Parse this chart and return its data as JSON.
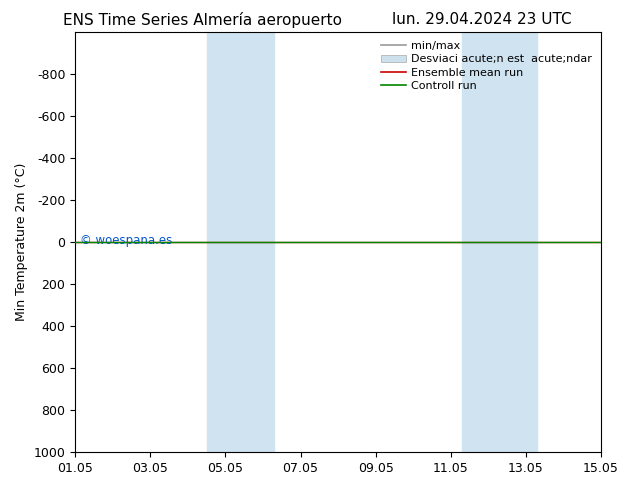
{
  "title_left": "ENS Time Series Almería aeropuerto",
  "title_right": "lun. 29.04.2024 23 UTC",
  "ylabel": "Min Temperature 2m (°C)",
  "ylim": [
    -1000,
    1000
  ],
  "yticks": [
    -800,
    -600,
    -400,
    -200,
    0,
    200,
    400,
    600,
    800,
    1000
  ],
  "xtick_labels": [
    "01.05",
    "03.05",
    "05.05",
    "07.05",
    "09.05",
    "11.05",
    "13.05",
    "15.05"
  ],
  "xtick_positions": [
    0,
    2,
    4,
    6,
    8,
    10,
    12,
    14
  ],
  "xlim": [
    0,
    14
  ],
  "shaded_bands": [
    {
      "x_start": 3.5,
      "x_end": 5.3,
      "color": "#cfe3f0",
      "alpha": 1.0
    },
    {
      "x_start": 10.3,
      "x_end": 12.3,
      "color": "#cfe3f0",
      "alpha": 1.0
    }
  ],
  "green_line_y": 0,
  "green_line_color": "#008800",
  "red_line_color": "#cc0000",
  "watermark": "© woespana.es",
  "watermark_color": "#0055cc",
  "background_color": "#ffffff",
  "plot_bg_color": "#ffffff",
  "legend_labels": [
    "min/max",
    "Desviaci acute;n est  acute;ndar",
    "Ensemble mean run",
    "Controll run"
  ],
  "legend_colors_line": [
    "#999999",
    "#bbbbbb",
    "#cc0000",
    "#008800"
  ],
  "title_fontsize": 11,
  "axis_fontsize": 9,
  "tick_fontsize": 9,
  "legend_fontsize": 8
}
